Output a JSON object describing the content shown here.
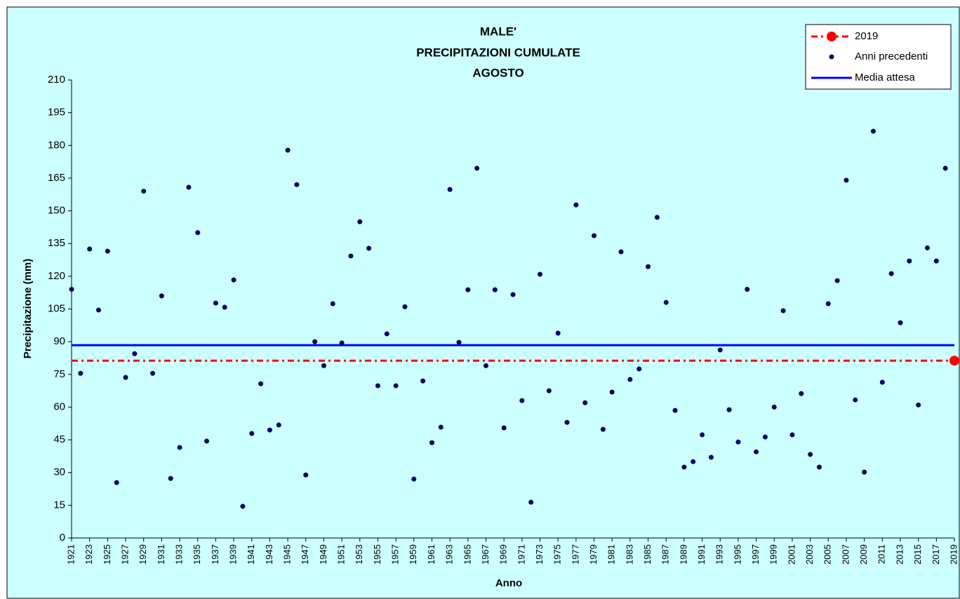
{
  "chart_data": {
    "type": "scatter",
    "title": [
      "MALE'",
      "PRECIPITAZIONI CUMULATE",
      "AGOSTO"
    ],
    "x_label": "Anno",
    "y_label": "Precipitazione (mm)",
    "xlim": [
      1921,
      2019
    ],
    "ylim": [
      0,
      210
    ],
    "yticks": [
      0,
      15,
      30,
      45,
      60,
      75,
      90,
      105,
      120,
      135,
      150,
      165,
      180,
      195,
      210
    ],
    "xticks": [
      1921,
      1923,
      1925,
      1927,
      1929,
      1931,
      1933,
      1935,
      1937,
      1939,
      1941,
      1943,
      1945,
      1947,
      1949,
      1951,
      1953,
      1955,
      1957,
      1959,
      1961,
      1963,
      1965,
      1967,
      1969,
      1971,
      1973,
      1975,
      1977,
      1979,
      1981,
      1983,
      1985,
      1987,
      1989,
      1991,
      1993,
      1995,
      1997,
      1999,
      2001,
      2003,
      2005,
      2007,
      2009,
      2011,
      2013,
      2015,
      2017,
      2019
    ],
    "series": [
      {
        "name": "2019",
        "color": "#ff0000",
        "x": [
          2019
        ],
        "values": [
          81.3
        ]
      },
      {
        "name": "Anni precedenti",
        "color": "#000066",
        "x": [
          1921,
          1922,
          1923,
          1924,
          1925,
          1926,
          1927,
          1928,
          1929,
          1930,
          1931,
          1932,
          1933,
          1934,
          1935,
          1936,
          1937,
          1938,
          1939,
          1940,
          1941,
          1942,
          1943,
          1944,
          1945,
          1946,
          1947,
          1948,
          1949,
          1950,
          1951,
          1952,
          1953,
          1954,
          1955,
          1956,
          1957,
          1958,
          1959,
          1960,
          1961,
          1962,
          1963,
          1964,
          1965,
          1966,
          1967,
          1968,
          1969,
          1970,
          1971,
          1972,
          1973,
          1974,
          1975,
          1976,
          1977,
          1978,
          1979,
          1980,
          1981,
          1982,
          1983,
          1984,
          1985,
          1986,
          1987,
          1988,
          1989,
          1990,
          1991,
          1992,
          1993,
          1994,
          1995,
          1996,
          1997,
          1998,
          1999,
          2000,
          2001,
          2002,
          2003,
          2004,
          2005,
          2006,
          2007,
          2008,
          2009,
          2010,
          2011,
          2012,
          2013,
          2014,
          2015,
          2016,
          2017,
          2018
        ],
        "values": [
          114,
          75.5,
          132.5,
          104.5,
          131.5,
          25.4,
          73.6,
          84.5,
          159,
          75.5,
          111,
          27.3,
          41.5,
          160.8,
          140,
          44.4,
          107.7,
          105.8,
          118.3,
          14.5,
          47.9,
          70.7,
          49.5,
          51.8,
          177.8,
          162,
          28.9,
          90,
          79,
          107.4,
          89.4,
          129.3,
          145,
          132.8,
          69.8,
          93.6,
          69.8,
          106,
          27,
          72,
          43.7,
          50.8,
          159.8,
          89.7,
          113.8,
          169.5,
          79,
          113.8,
          50.5,
          111.6,
          63,
          16.4,
          120.9,
          67.5,
          93.9,
          53,
          152.7,
          62,
          138.6,
          49.8,
          66.9,
          131.2,
          72.7,
          77.5,
          124.4,
          147,
          108,
          58.5,
          32.5,
          35,
          47.3,
          37,
          86.2,
          58.8,
          44,
          114,
          39.5,
          46.3,
          60,
          104.2,
          47.3,
          66.2,
          38.3,
          32.5,
          107.4,
          118,
          164,
          63.3,
          30.2,
          186.5,
          71.4,
          121.2,
          98.7,
          127,
          61,
          133,
          127,
          169.5
        ]
      },
      {
        "name": "Media attesa",
        "color": "#0000ff",
        "values": [
          88.4
        ]
      }
    ],
    "legend": "upper right"
  }
}
